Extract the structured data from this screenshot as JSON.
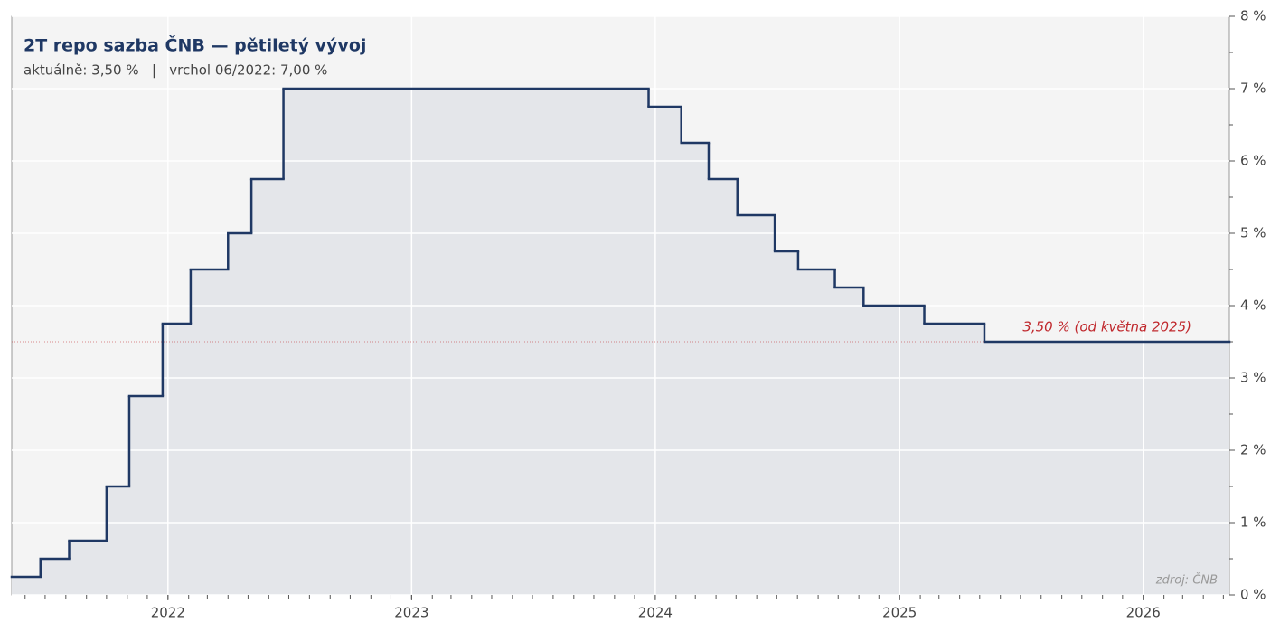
{
  "chart_data": {
    "type": "step",
    "title": "2T repo sazba ČNB — pětiletý vývoj",
    "subtitle": "aktuálně: 3,50 %   |   vrchol 06/2022: 7,00 %",
    "source": "zdroj: ČNB",
    "x": [
      "2021-05-12",
      "2021-06-24",
      "2021-08-06",
      "2021-10-01",
      "2021-11-04",
      "2021-12-24",
      "2022-02-04",
      "2022-04-01",
      "2022-05-06",
      "2022-06-23",
      "2023-12-22",
      "2024-02-09",
      "2024-03-21",
      "2024-05-03",
      "2024-06-28",
      "2024-08-02",
      "2024-09-26",
      "2024-11-08",
      "2025-02-07",
      "2025-05-08"
    ],
    "values": [
      0.25,
      0.5,
      0.75,
      1.5,
      2.75,
      3.75,
      4.5,
      5.0,
      5.75,
      7.0,
      6.75,
      6.25,
      5.75,
      5.25,
      4.75,
      4.5,
      4.25,
      4.0,
      3.75,
      3.5
    ],
    "color": "#1f3864",
    "fill_color": "#e4e6ea",
    "xlim": [
      "2021-05-12",
      "2026-05-10"
    ],
    "xticks": [
      {
        "value": "2022-01-01",
        "label": "2022"
      },
      {
        "value": "2023-01-01",
        "label": "2023"
      },
      {
        "value": "2024-01-01",
        "label": "2024"
      },
      {
        "value": "2025-01-01",
        "label": "2025"
      },
      {
        "value": "2026-01-01",
        "label": "2026"
      }
    ],
    "ylim": [
      0,
      8
    ],
    "yticks": [
      {
        "value": 0,
        "label": "0 %"
      },
      {
        "value": 1,
        "label": "1 %"
      },
      {
        "value": 2,
        "label": "2 %"
      },
      {
        "value": 3,
        "label": "3 %"
      },
      {
        "value": 4,
        "label": "4 %"
      },
      {
        "value": 5,
        "label": "5 %"
      },
      {
        "value": 6,
        "label": "6 %"
      },
      {
        "value": 7,
        "label": "7 %"
      },
      {
        "value": 8,
        "label": "8 %"
      }
    ],
    "grid": true,
    "reference_line": {
      "value": 3.5,
      "label": "3,50 % (od května 2025)",
      "color": "#c0282d"
    }
  }
}
